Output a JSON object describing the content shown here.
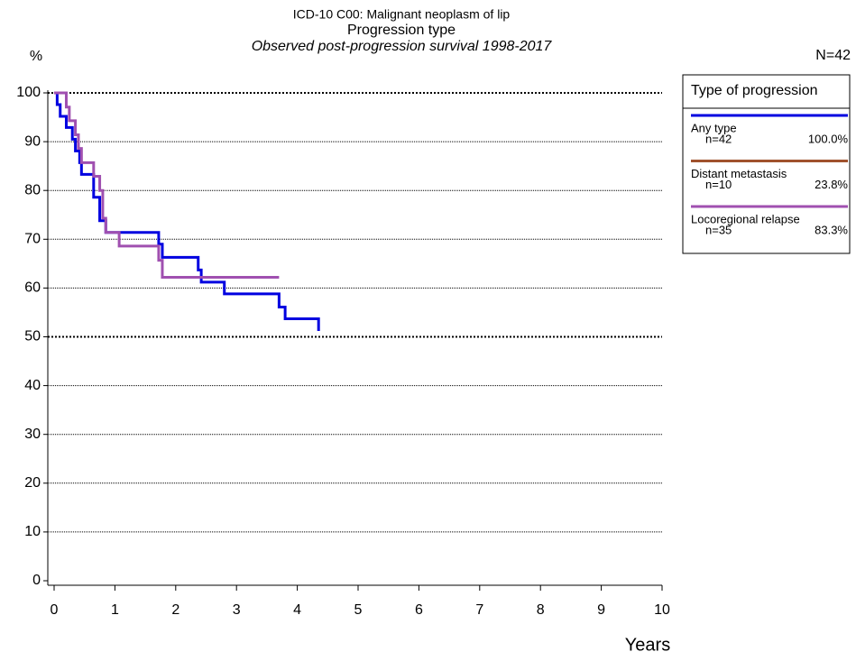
{
  "chart_data": {
    "type": "step-line",
    "title": "ICD-10 C00: Malignant neoplasm of lip",
    "subtitle": "Progression type",
    "subtitle2": "Observed post-progression survival 1998-2017",
    "y_label": "%",
    "x_label": "Years",
    "total": "N=42",
    "legend_title": "Type of progression",
    "xlim": [
      0,
      10
    ],
    "xticks": [
      0,
      1,
      2,
      3,
      4,
      5,
      6,
      7,
      8,
      9,
      10
    ],
    "ylim": [
      0,
      100
    ],
    "yticks": [
      0,
      10,
      20,
      30,
      40,
      50,
      60,
      70,
      80,
      90,
      100
    ],
    "grid": true,
    "series": [
      {
        "name": "Any type",
        "n": "n=42",
        "percent": "100.0%",
        "color": "#0000e0",
        "x": [
          0,
          0.05,
          0.1,
          0.2,
          0.3,
          0.35,
          0.42,
          0.45,
          0.65,
          0.75,
          0.85,
          1.72,
          1.78,
          2.37,
          2.42,
          2.8,
          3.7,
          3.8,
          4.35
        ],
        "values": [
          100,
          97.6,
          95.2,
          92.9,
          90.5,
          88.1,
          85.7,
          83.3,
          78.6,
          73.8,
          71.4,
          69.0,
          66.3,
          63.7,
          61.2,
          58.8,
          56.1,
          53.7,
          51.2
        ]
      },
      {
        "name": "Distant metastasis",
        "n": "n=10",
        "percent": "23.8%",
        "color": "#a0522d",
        "x": [],
        "values": []
      },
      {
        "name": "Locoregional relapse",
        "n": "n=35",
        "percent": "83.3%",
        "color": "#a050b0",
        "x": [
          0,
          0.2,
          0.25,
          0.35,
          0.4,
          0.45,
          0.65,
          0.75,
          0.8,
          0.85,
          1.07,
          1.72,
          1.78,
          3.7
        ],
        "values": [
          100,
          97.1,
          94.3,
          91.4,
          88.6,
          85.7,
          82.9,
          80.0,
          74.3,
          71.4,
          68.6,
          65.7,
          62.2,
          62.2
        ]
      }
    ]
  }
}
